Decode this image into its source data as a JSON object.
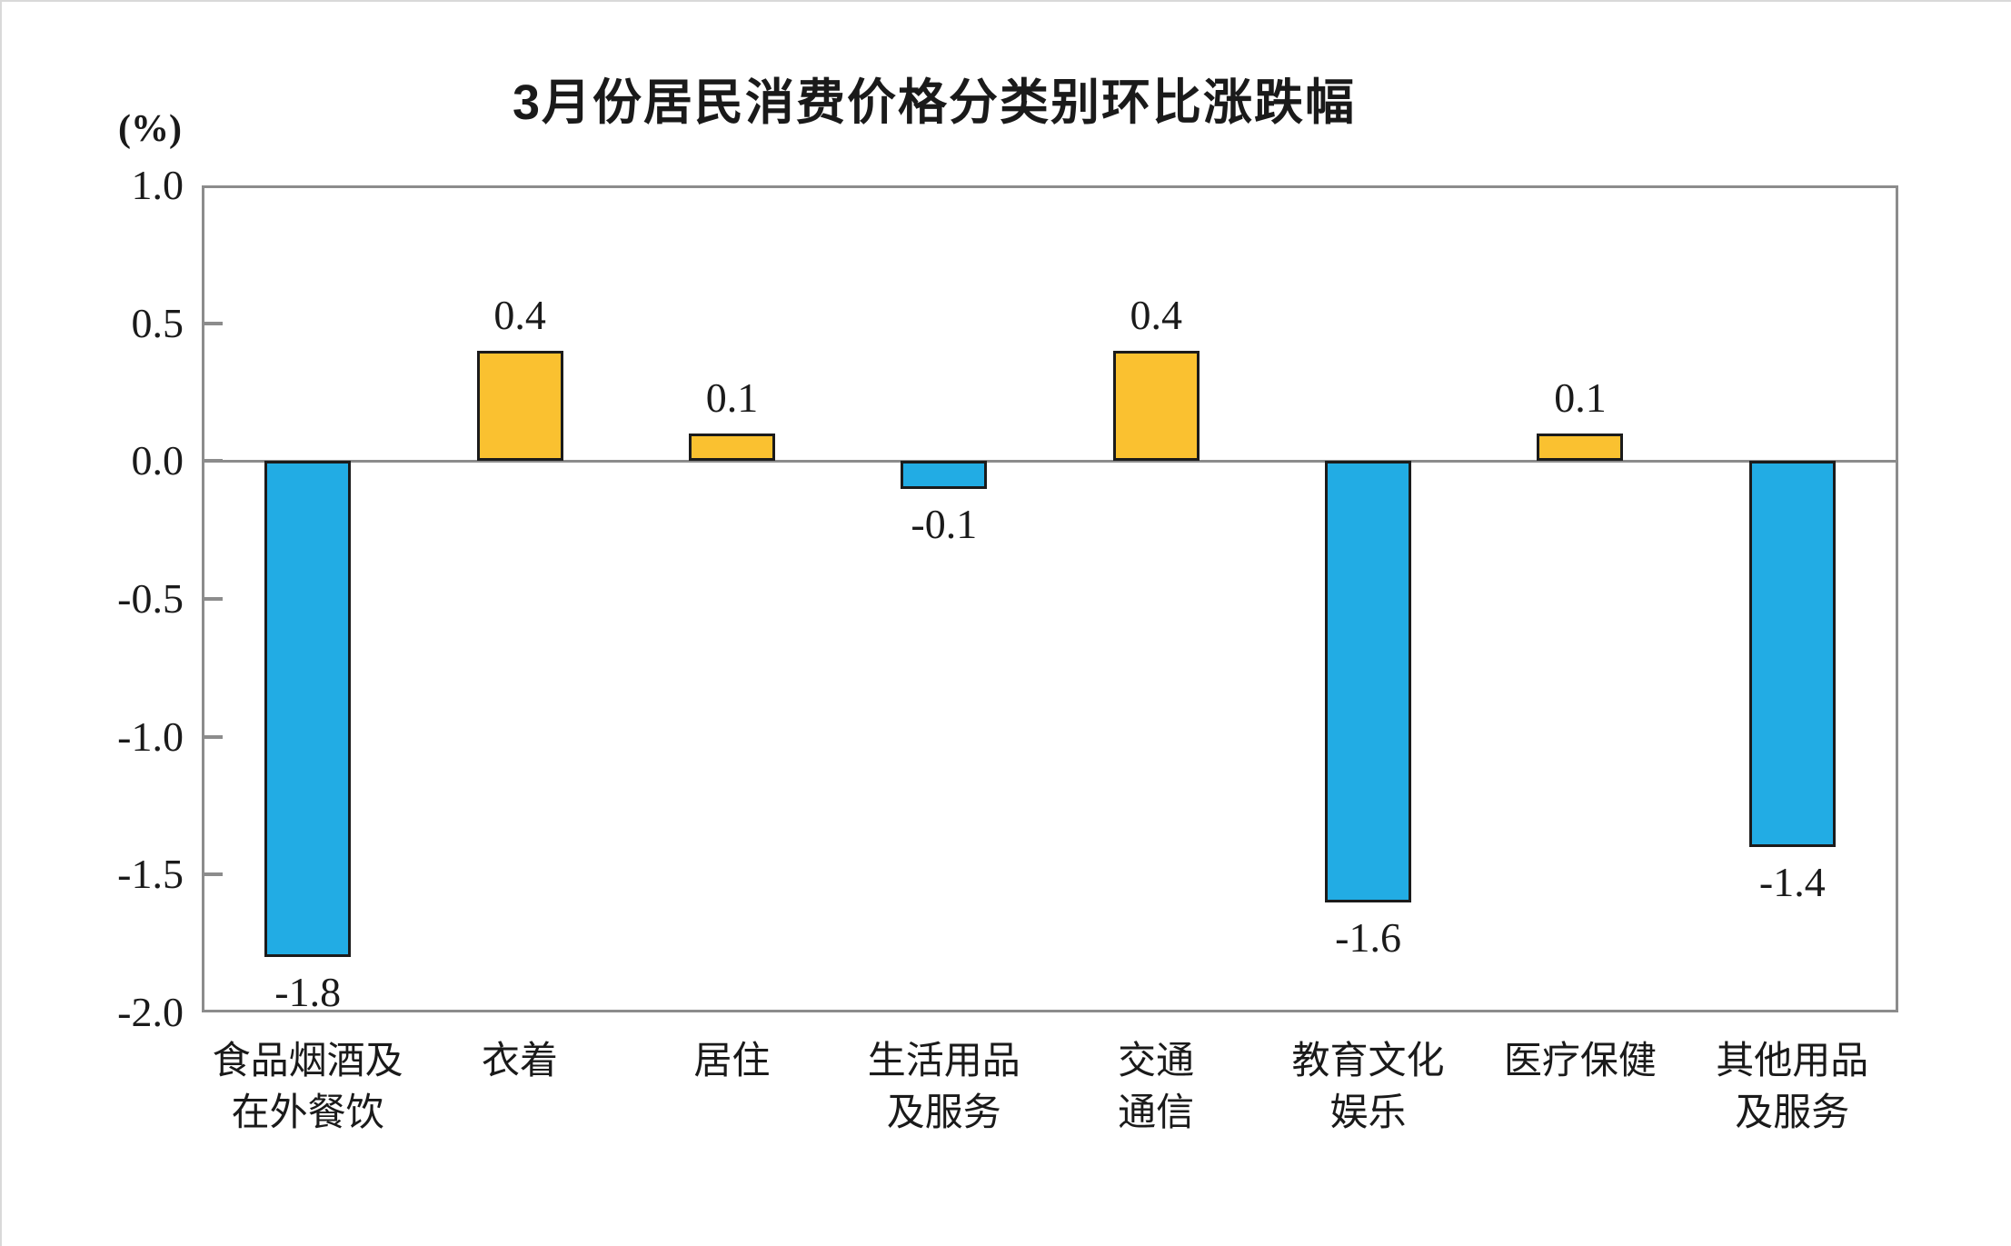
{
  "chart": {
    "colors": {
      "positive_bar": "#FAC130",
      "negative_bar": "#22ACE4",
      "bar_border": "#1B1B1B",
      "axis": "#8C8C8C",
      "text": "#1A1A1A"
    }
  },
  "chart_data": {
    "type": "bar",
    "title": "3月份居民消费价格分类别环比涨跌幅",
    "ylabel": "(%)",
    "xlabel": "",
    "ylim": [
      -2.0,
      1.0
    ],
    "ytick_interval": 0.5,
    "ytick_labels": [
      "1.0",
      "0.5",
      "0.0",
      "-0.5",
      "-1.0",
      "-1.5",
      "-2.0"
    ],
    "ytick_values": [
      1.0,
      0.5,
      0.0,
      -0.5,
      -1.0,
      -1.5,
      -2.0
    ],
    "grid": false,
    "legend": "none",
    "categories": [
      "食品烟酒及在外餐饮",
      "衣着",
      "居住",
      "生活用品及服务",
      "交通通信",
      "教育文化娱乐",
      "医疗保健",
      "其他用品及服务"
    ],
    "category_lines": [
      [
        "食品烟酒及",
        "在外餐饮"
      ],
      [
        "衣着"
      ],
      [
        "居住"
      ],
      [
        "生活用品",
        "及服务"
      ],
      [
        "交通",
        "通信"
      ],
      [
        "教育文化",
        "娱乐"
      ],
      [
        "医疗保健"
      ],
      [
        "其他用品",
        "及服务"
      ]
    ],
    "values": [
      -1.8,
      0.4,
      0.1,
      -0.1,
      0.4,
      -1.6,
      0.1,
      -1.4
    ],
    "value_labels": [
      "-1.8",
      "0.4",
      "0.1",
      "-0.1",
      "0.4",
      "-1.6",
      "0.1",
      "-1.4"
    ],
    "bar_color_rule": "positive values orange, negative values blue"
  }
}
